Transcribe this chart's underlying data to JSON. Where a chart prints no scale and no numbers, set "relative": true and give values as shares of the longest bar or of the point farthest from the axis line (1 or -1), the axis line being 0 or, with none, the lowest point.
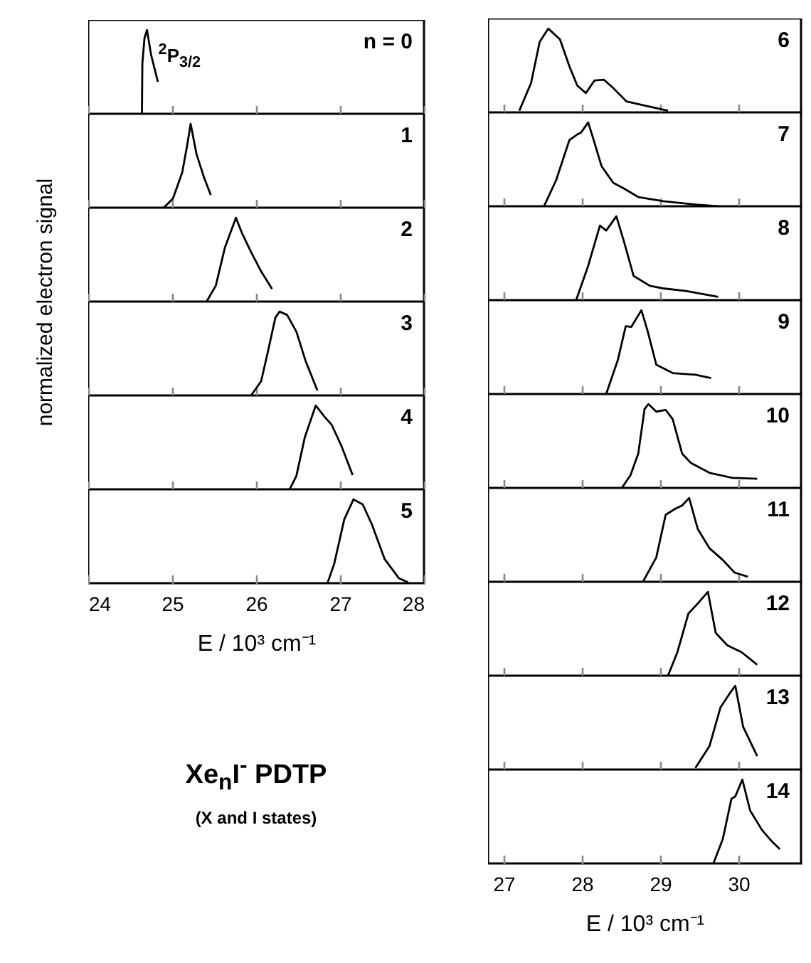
{
  "chart_data": [
    {
      "type": "line",
      "relative": true,
      "ylabel": "normalized electron signal",
      "xlim": [
        24,
        28
      ],
      "xticks": [
        24,
        25,
        26,
        27,
        28
      ],
      "tick_labels": false,
      "color": "#000000",
      "annotations": [
        "n = 0",
        "$^{2}$P$_{3/2}$"
      ],
      "x": [
        24.64,
        24.645,
        24.67,
        24.7,
        24.75,
        24.83
      ],
      "values": [
        0,
        0.6,
        0.9,
        1,
        0.7,
        0.38
      ]
    },
    {
      "type": "line",
      "relative": true,
      "xlim": [
        24,
        28
      ],
      "xticks": [
        24,
        25,
        26,
        27,
        28
      ],
      "tick_labels": false,
      "color": "#000000",
      "annotations": [
        "1"
      ],
      "x": [
        24.9,
        25.01,
        25.12,
        25.18,
        25.22,
        25.29,
        25.38,
        25.46
      ],
      "values": [
        0,
        0.11,
        0.42,
        0.75,
        1,
        0.64,
        0.36,
        0.15
      ]
    },
    {
      "type": "line",
      "relative": true,
      "xlim": [
        24,
        28
      ],
      "xticks": [
        24,
        25,
        26,
        27,
        28
      ],
      "tick_labels": false,
      "color": "#000000",
      "annotations": [
        "2"
      ],
      "x": [
        25.41,
        25.52,
        25.63,
        25.76,
        25.83,
        25.94,
        26.06,
        26.19
      ],
      "values": [
        0,
        0.19,
        0.65,
        1,
        0.82,
        0.59,
        0.36,
        0.15
      ]
    },
    {
      "type": "line",
      "relative": true,
      "xlim": [
        24,
        28
      ],
      "xticks": [
        24,
        25,
        26,
        27,
        28
      ],
      "tick_labels": false,
      "color": "#000000",
      "annotations": [
        "3"
      ],
      "x": [
        25.94,
        26.06,
        26.14,
        26.23,
        26.28,
        26.37,
        26.48,
        26.59,
        26.73
      ],
      "values": [
        0,
        0.17,
        0.52,
        0.93,
        1,
        0.96,
        0.76,
        0.41,
        0.06
      ]
    },
    {
      "type": "line",
      "relative": true,
      "xlim": [
        24,
        28
      ],
      "xticks": [
        24,
        25,
        26,
        27,
        28
      ],
      "tick_labels": false,
      "color": "#000000",
      "annotations": [
        "4"
      ],
      "x": [
        26.4,
        26.48,
        26.58,
        26.71,
        26.82,
        26.9,
        27.02,
        27.15
      ],
      "values": [
        0,
        0.16,
        0.62,
        1,
        0.86,
        0.77,
        0.51,
        0.17
      ]
    },
    {
      "type": "line",
      "relative": true,
      "xlabel": "E / 10³ cm⁻¹",
      "xlim": [
        24,
        28
      ],
      "xticks": [
        24,
        25,
        26,
        27,
        28
      ],
      "tick_labels": "x",
      "color": "#000000",
      "annotations": [
        "5"
      ],
      "x": [
        26.85,
        26.93,
        27.05,
        27.16,
        27.27,
        27.38,
        27.53,
        27.7,
        27.81
      ],
      "values": [
        0,
        0.23,
        0.76,
        1,
        0.94,
        0.7,
        0.29,
        0.06,
        0.01
      ]
    },
    {
      "type": "line",
      "relative": true,
      "xlim": [
        26.8,
        30.8
      ],
      "xticks": [
        27,
        28,
        29,
        30
      ],
      "tick_labels": false,
      "color": "#000000",
      "annotations": [
        "6"
      ],
      "x": [
        27.2,
        27.35,
        27.46,
        27.57,
        27.72,
        27.84,
        27.94,
        28.05,
        28.16,
        28.28,
        28.4,
        28.57,
        28.81,
        29.1
      ],
      "values": [
        0.02,
        0.35,
        0.84,
        1,
        0.87,
        0.55,
        0.32,
        0.23,
        0.38,
        0.39,
        0.29,
        0.13,
        0.08,
        0.02
      ]
    },
    {
      "type": "line",
      "relative": true,
      "xlim": [
        26.8,
        30.8
      ],
      "xticks": [
        27,
        28,
        29,
        30
      ],
      "tick_labels": false,
      "color": "#000000",
      "annotations": [
        "7"
      ],
      "x": [
        27.52,
        27.67,
        27.84,
        27.93,
        27.99,
        28.08,
        28.16,
        28.25,
        28.4,
        28.54,
        28.72,
        29.04,
        29.45,
        29.74
      ],
      "values": [
        0.01,
        0.31,
        0.79,
        0.85,
        0.88,
        1,
        0.76,
        0.48,
        0.28,
        0.21,
        0.11,
        0.06,
        0.02,
        0
      ]
    },
    {
      "type": "line",
      "relative": true,
      "xlim": [
        26.8,
        30.8
      ],
      "xticks": [
        27,
        28,
        29,
        30
      ],
      "tick_labels": false,
      "color": "#000000",
      "annotations": [
        "8"
      ],
      "x": [
        27.93,
        28.08,
        28.23,
        28.31,
        28.44,
        28.54,
        28.66,
        28.87,
        29.04,
        29.33,
        29.74
      ],
      "values": [
        0.01,
        0.41,
        0.89,
        0.83,
        1,
        0.69,
        0.29,
        0.17,
        0.14,
        0.11,
        0.04
      ]
    },
    {
      "type": "line",
      "relative": true,
      "xlim": [
        26.8,
        30.8
      ],
      "xticks": [
        27,
        28,
        29,
        30
      ],
      "tick_labels": false,
      "color": "#000000",
      "annotations": [
        "9"
      ],
      "x": [
        28.31,
        28.46,
        28.56,
        28.63,
        28.76,
        28.84,
        28.95,
        29.16,
        29.45,
        29.65
      ],
      "values": [
        0,
        0.41,
        0.81,
        0.8,
        1,
        0.75,
        0.35,
        0.25,
        0.23,
        0.19
      ]
    },
    {
      "type": "line",
      "relative": true,
      "xlim": [
        26.8,
        30.8
      ],
      "xticks": [
        27,
        28,
        29,
        30
      ],
      "tick_labels": false,
      "color": "#000000",
      "annotations": [
        "10"
      ],
      "x": [
        28.51,
        28.62,
        28.72,
        28.8,
        28.85,
        28.95,
        29.07,
        29.16,
        29.28,
        29.39,
        29.63,
        29.92,
        30.24
      ],
      "values": [
        0,
        0.15,
        0.41,
        0.94,
        1,
        0.91,
        0.93,
        0.82,
        0.41,
        0.3,
        0.18,
        0.12,
        0.11
      ]
    },
    {
      "type": "line",
      "relative": true,
      "xlim": [
        26.8,
        30.8
      ],
      "xticks": [
        27,
        28,
        29,
        30
      ],
      "tick_labels": false,
      "color": "#000000",
      "annotations": [
        "11"
      ],
      "x": [
        28.78,
        28.95,
        29.07,
        29.19,
        29.28,
        29.37,
        29.48,
        29.63,
        29.8,
        29.95,
        30.12
      ],
      "values": [
        0,
        0.29,
        0.8,
        0.87,
        0.91,
        1,
        0.63,
        0.4,
        0.26,
        0.11,
        0.06
      ]
    },
    {
      "type": "line",
      "relative": true,
      "xlim": [
        26.8,
        30.8
      ],
      "xticks": [
        27,
        28,
        29,
        30
      ],
      "tick_labels": false,
      "color": "#000000",
      "annotations": [
        "12"
      ],
      "x": [
        29.1,
        29.22,
        29.36,
        29.48,
        29.61,
        29.71,
        29.86,
        30.04,
        30.24
      ],
      "values": [
        0,
        0.28,
        0.74,
        0.86,
        1,
        0.51,
        0.36,
        0.28,
        0.13
      ]
    },
    {
      "type": "line",
      "relative": true,
      "xlim": [
        26.8,
        30.8
      ],
      "xticks": [
        27,
        28,
        29,
        30
      ],
      "tick_labels": false,
      "color": "#000000",
      "annotations": [
        "13"
      ],
      "x": [
        29.45,
        29.63,
        29.77,
        29.89,
        29.96,
        30.06,
        30.24
      ],
      "values": [
        0.02,
        0.28,
        0.74,
        0.91,
        1,
        0.51,
        0.16
      ]
    },
    {
      "type": "line",
      "relative": true,
      "xlabel": "E / 10³ cm⁻¹",
      "xlim": [
        26.8,
        30.8
      ],
      "xticks": [
        27,
        28,
        29,
        30
      ],
      "tick_labels": "x",
      "color": "#000000",
      "annotations": [
        "14"
      ],
      "x": [
        29.68,
        29.8,
        29.91,
        29.96,
        30.05,
        30.15,
        30.3,
        30.42,
        30.53
      ],
      "values": [
        0,
        0.29,
        0.77,
        0.8,
        1,
        0.63,
        0.4,
        0.27,
        0.17
      ]
    },
    {
      "type": "other",
      "title": "Xe$_{n}$I$^{-}$ PDTP",
      "subtitle": "(X and I states)"
    }
  ]
}
